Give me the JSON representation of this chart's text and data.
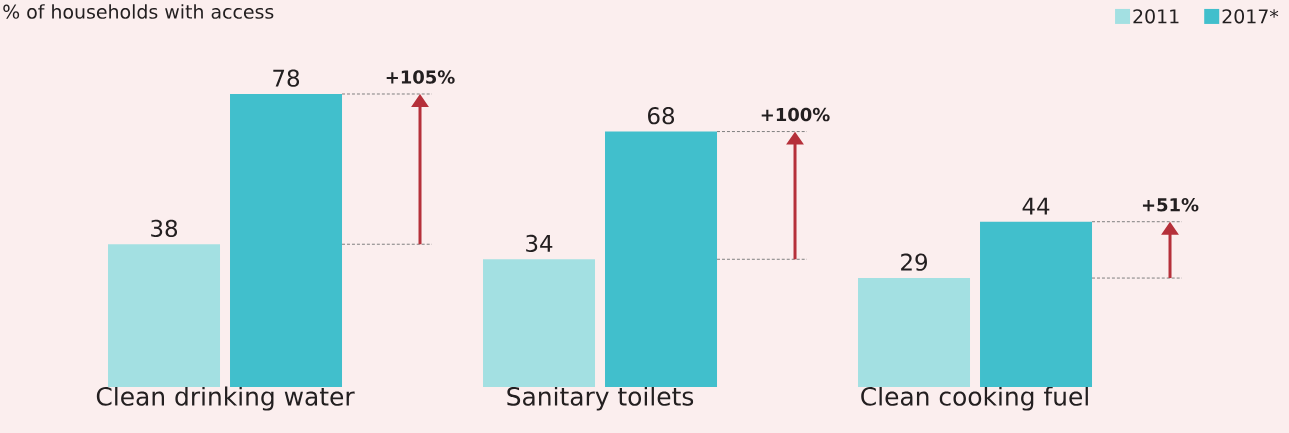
{
  "chart_data": {
    "type": "bar",
    "ylabel": "% of households with access",
    "categories": [
      "Clean drinking water",
      "Sanitary toilets",
      "Clean cooking fuel"
    ],
    "series": [
      {
        "name": "2011",
        "color": "#a3e0e2",
        "values": [
          38,
          34,
          29
        ]
      },
      {
        "name": "2017*",
        "color": "#41bfcc",
        "values": [
          78,
          68,
          44
        ]
      }
    ],
    "data_labels": true,
    "legend": "top right",
    "annotations": [
      "+105%",
      "+100%",
      "+51%"
    ]
  }
}
